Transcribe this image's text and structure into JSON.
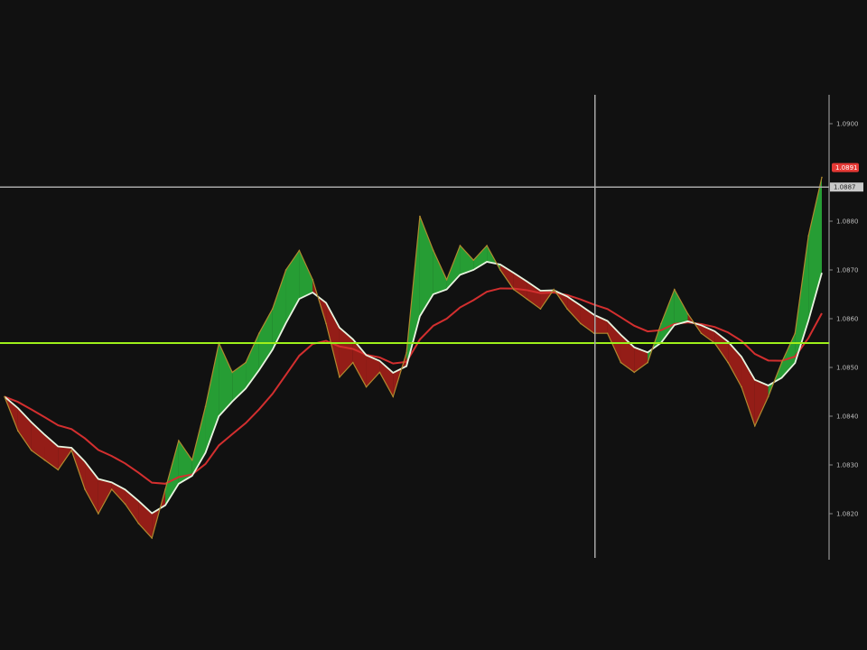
{
  "chart_data": {
    "type": "line",
    "title": "",
    "xlabel": "",
    "ylabel": "",
    "ylim": [
      1.0805,
      1.092
    ],
    "grid": false,
    "y_ticks": [
      "1.0900",
      "1.0880",
      "1.0870",
      "1.0860",
      "1.0850",
      "1.0840",
      "1.0830",
      "1.0820"
    ],
    "y_tick_values": [
      1.09,
      1.088,
      1.087,
      1.086,
      1.085,
      1.084,
      1.083,
      1.082
    ],
    "price_badge": {
      "label": "1.0891",
      "value": 1.0891,
      "color": "#e53935"
    },
    "crosshair_badge": {
      "label": "1.0887",
      "value": 1.0887
    },
    "horizontal_line": {
      "value": 1.0855,
      "color": "#9ef01a"
    },
    "crosshair_vertical_index": 44,
    "colors": {
      "price": "#b08a2e",
      "fast_ma": "#e8f5e0",
      "slow_ma": "#d32f2f",
      "bull_fill": "#2ecc40",
      "bear_fill": "#c0211a",
      "background": "#111111"
    },
    "series": [
      {
        "values": [
          1.0844,
          1.0837,
          1.0833,
          1.0831,
          1.0829,
          1.0833,
          1.0825,
          1.082,
          1.0825,
          1.0822,
          1.0818,
          1.0815,
          1.0825,
          1.0835,
          1.0831,
          1.0842,
          1.0855,
          1.0849,
          1.0851,
          1.0857,
          1.0862,
          1.087,
          1.0874,
          1.0868,
          1.0859,
          1.0848,
          1.0851,
          1.0846,
          1.0849,
          1.0844,
          1.0853,
          1.0881,
          1.0874,
          1.0868,
          1.0875,
          1.0872,
          1.0875,
          1.087,
          1.0866,
          1.0864,
          1.0862,
          1.0866,
          1.0862,
          1.0859,
          1.0857,
          1.0857,
          1.0851,
          1.0849,
          1.0851,
          1.0859,
          1.0866,
          1.0861,
          1.0857,
          1.0855,
          1.0851,
          1.0846,
          1.0838,
          1.0844,
          1.0851,
          1.0857,
          1.0877,
          1.0889
        ]
      }
    ]
  }
}
